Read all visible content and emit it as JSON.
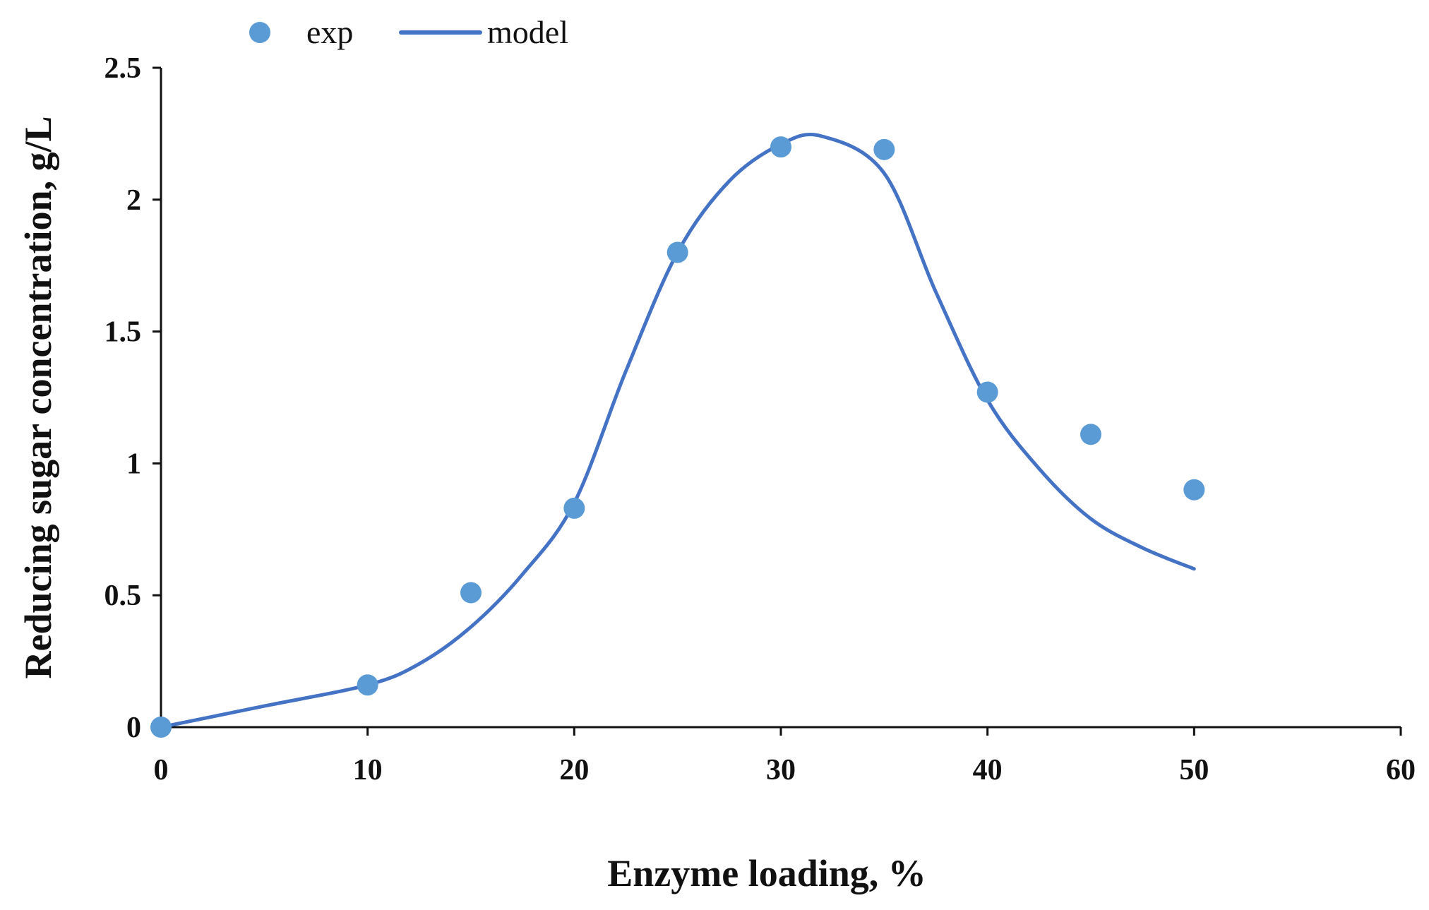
{
  "chart_data": {
    "type": "scatter",
    "title": "",
    "xlabel": "Enzyme loading, %",
    "ylabel": "Reducing sugar concentration, g/L",
    "xlim": [
      0,
      60
    ],
    "ylim": [
      0,
      2.5
    ],
    "xticks": [
      0,
      10,
      20,
      30,
      40,
      50,
      60
    ],
    "yticks": [
      0,
      0.5,
      1,
      1.5,
      2,
      2.5
    ],
    "xtick_labels": [
      "0",
      "10",
      "20",
      "30",
      "40",
      "50",
      "60"
    ],
    "ytick_labels": [
      "0",
      "0.5",
      "1",
      "1.5",
      "2",
      "2.5"
    ],
    "grid": false,
    "legend_position": "top",
    "series": [
      {
        "name": "exp",
        "kind": "markers",
        "color": "#5b9bd5",
        "x": [
          0,
          10,
          15,
          20,
          25,
          30,
          35,
          40,
          45,
          50
        ],
        "y": [
          0.0,
          0.16,
          0.51,
          0.83,
          1.8,
          2.2,
          2.19,
          1.27,
          1.11,
          0.9
        ]
      },
      {
        "name": "model",
        "kind": "line",
        "color": "#4472c4",
        "x": [
          0,
          5,
          10,
          12.5,
          15,
          17.5,
          20,
          22.5,
          25,
          27.5,
          30,
          32,
          35,
          37.5,
          40,
          42.5,
          45,
          47.5,
          50
        ],
        "y": [
          0.0,
          0.08,
          0.16,
          0.24,
          0.38,
          0.58,
          0.85,
          1.35,
          1.8,
          2.07,
          2.21,
          2.24,
          2.1,
          1.65,
          1.24,
          0.98,
          0.79,
          0.68,
          0.6
        ]
      }
    ]
  }
}
